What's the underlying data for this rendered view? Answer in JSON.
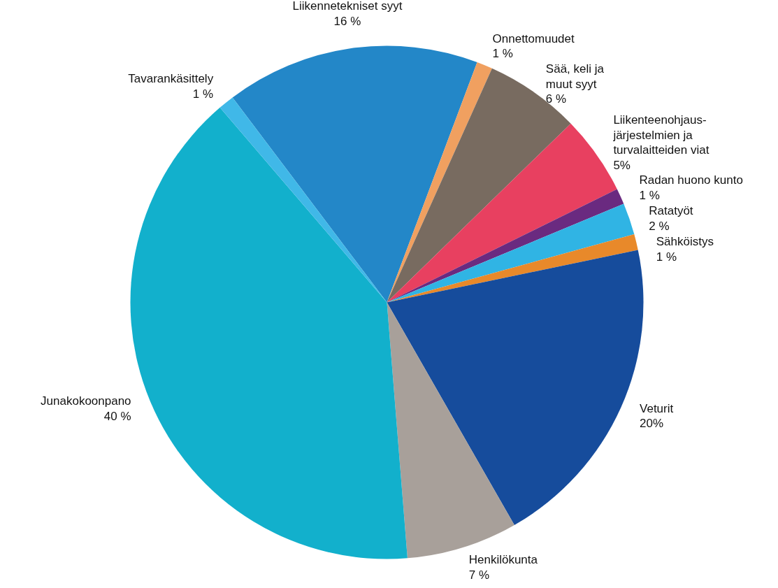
{
  "chart_data": {
    "type": "pie",
    "categories": [
      "Liikennetekniset syyt",
      "Onnettomuudet",
      "Sää, keli ja\nmuut syyt",
      "Liikenteenohjaus-\njärjestelmien ja\nturvalaitteiden viat",
      "Radan huono kunto",
      "Ratatyöt",
      "Sähköistys",
      "Veturit",
      "Henkilökunta",
      "Junakokoonpano",
      "Tavarankäsittely"
    ],
    "values": [
      16,
      1,
      6,
      5,
      1,
      2,
      1,
      20,
      7,
      40,
      1
    ],
    "value_labels": [
      "16 %",
      "1 %",
      "6 %",
      "5%",
      "1 %",
      "2 %",
      "1 %",
      "20%",
      "7 %",
      "40 %",
      "1 %"
    ],
    "colors": [
      "#2387c8",
      "#f0a060",
      "#786b60",
      "#e84060",
      "#6a2a80",
      "#30b4e4",
      "#e8892a",
      "#164c9c",
      "#a8a09a",
      "#12b0cc",
      "#40b8e8"
    ]
  }
}
